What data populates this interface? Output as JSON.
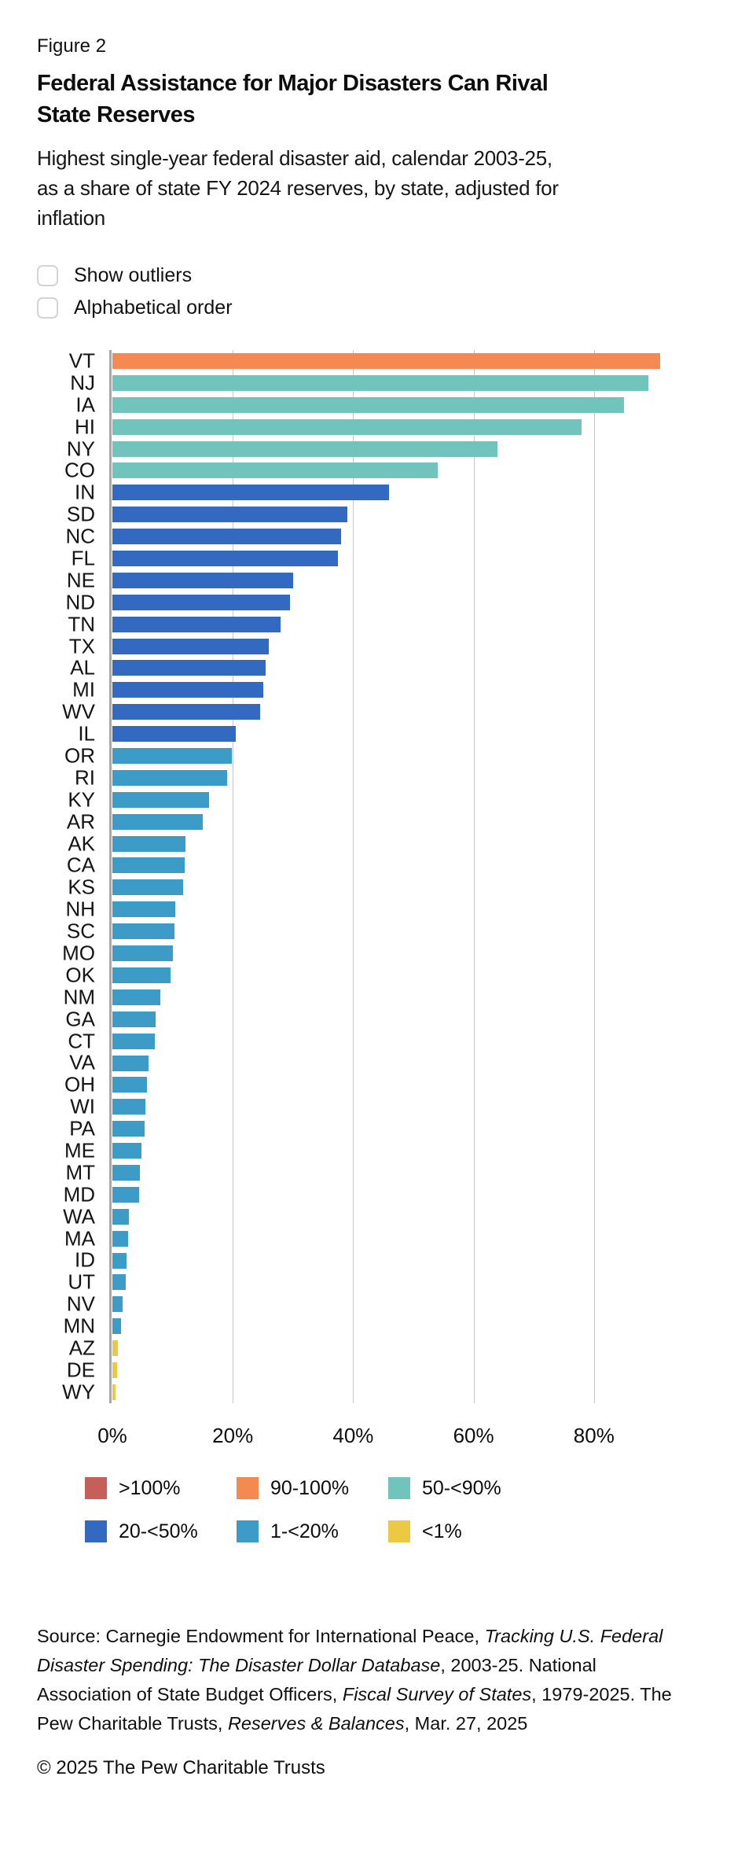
{
  "figure_label": "Figure 2",
  "title_lines": [
    "Federal Assistance for Major Disasters Can Rival",
    "State Reserves"
  ],
  "subtitle_lines": [
    "Highest single-year federal disaster aid, calendar 2003-25,",
    "as a share of state FY 2024 reserves, by state, adjusted for",
    "inflation"
  ],
  "controls": {
    "show_outliers_label": "Show outliers",
    "show_outliers_checked": false,
    "alphabetical_label": "Alphabetical order",
    "alphabetical_checked": false
  },
  "chart_data": {
    "type": "bar",
    "orientation": "horizontal",
    "title": "Highest single-year federal disaster aid, calendar 2003-25, as a share of state FY 2024 reserves, by state, adjusted for inflation",
    "xlabel": "",
    "ylabel": "",
    "x_ticks": [
      "0%",
      "20%",
      "40%",
      "60%",
      "80%"
    ],
    "x_tick_values": [
      0,
      20,
      40,
      60,
      80
    ],
    "xlim": [
      0,
      103
    ],
    "grid": true,
    "unit": "percent",
    "bucket_colors": {
      ">100%": "#C65F5A",
      "90-100%": "#F48952",
      "50-<90%": "#70C4BB",
      "20-<50%": "#3469C1",
      "1-<20%": "#3D9BC8",
      "<1%": "#ECC943"
    },
    "bars": [
      {
        "state": "VT",
        "value": 91,
        "bucket": "90-100%"
      },
      {
        "state": "NJ",
        "value": 89,
        "bucket": "50-<90%"
      },
      {
        "state": "IA",
        "value": 85,
        "bucket": "50-<90%"
      },
      {
        "state": "HI",
        "value": 78,
        "bucket": "50-<90%"
      },
      {
        "state": "NY",
        "value": 64,
        "bucket": "50-<90%"
      },
      {
        "state": "CO",
        "value": 54,
        "bucket": "50-<90%"
      },
      {
        "state": "IN",
        "value": 46,
        "bucket": "20-<50%"
      },
      {
        "state": "SD",
        "value": 39,
        "bucket": "20-<50%"
      },
      {
        "state": "NC",
        "value": 38,
        "bucket": "20-<50%"
      },
      {
        "state": "FL",
        "value": 37.5,
        "bucket": "20-<50%"
      },
      {
        "state": "NE",
        "value": 30,
        "bucket": "20-<50%"
      },
      {
        "state": "ND",
        "value": 29.5,
        "bucket": "20-<50%"
      },
      {
        "state": "TN",
        "value": 28,
        "bucket": "20-<50%"
      },
      {
        "state": "TX",
        "value": 26,
        "bucket": "20-<50%"
      },
      {
        "state": "AL",
        "value": 25.5,
        "bucket": "20-<50%"
      },
      {
        "state": "MI",
        "value": 25,
        "bucket": "20-<50%"
      },
      {
        "state": "WV",
        "value": 24.5,
        "bucket": "20-<50%"
      },
      {
        "state": "IL",
        "value": 20.5,
        "bucket": "20-<50%"
      },
      {
        "state": "OR",
        "value": 19.9,
        "bucket": "1-<20%"
      },
      {
        "state": "RI",
        "value": 19,
        "bucket": "1-<20%"
      },
      {
        "state": "KY",
        "value": 16,
        "bucket": "1-<20%"
      },
      {
        "state": "AR",
        "value": 15,
        "bucket": "1-<20%"
      },
      {
        "state": "AK",
        "value": 12.2,
        "bucket": "1-<20%"
      },
      {
        "state": "CA",
        "value": 12,
        "bucket": "1-<20%"
      },
      {
        "state": "KS",
        "value": 11.8,
        "bucket": "1-<20%"
      },
      {
        "state": "NH",
        "value": 10.5,
        "bucket": "1-<20%"
      },
      {
        "state": "SC",
        "value": 10.3,
        "bucket": "1-<20%"
      },
      {
        "state": "MO",
        "value": 10,
        "bucket": "1-<20%"
      },
      {
        "state": "OK",
        "value": 9.7,
        "bucket": "1-<20%"
      },
      {
        "state": "NM",
        "value": 8,
        "bucket": "1-<20%"
      },
      {
        "state": "GA",
        "value": 7.2,
        "bucket": "1-<20%"
      },
      {
        "state": "CT",
        "value": 7,
        "bucket": "1-<20%"
      },
      {
        "state": "VA",
        "value": 6,
        "bucket": "1-<20%"
      },
      {
        "state": "OH",
        "value": 5.8,
        "bucket": "1-<20%"
      },
      {
        "state": "WI",
        "value": 5.5,
        "bucket": "1-<20%"
      },
      {
        "state": "PA",
        "value": 5.4,
        "bucket": "1-<20%"
      },
      {
        "state": "ME",
        "value": 4.8,
        "bucket": "1-<20%"
      },
      {
        "state": "MT",
        "value": 4.6,
        "bucket": "1-<20%"
      },
      {
        "state": "MD",
        "value": 4.5,
        "bucket": "1-<20%"
      },
      {
        "state": "WA",
        "value": 2.7,
        "bucket": "1-<20%"
      },
      {
        "state": "MA",
        "value": 2.6,
        "bucket": "1-<20%"
      },
      {
        "state": "ID",
        "value": 2.4,
        "bucket": "1-<20%"
      },
      {
        "state": "UT",
        "value": 2.2,
        "bucket": "1-<20%"
      },
      {
        "state": "NV",
        "value": 1.7,
        "bucket": "1-<20%"
      },
      {
        "state": "MN",
        "value": 1.4,
        "bucket": "1-<20%"
      },
      {
        "state": "AZ",
        "value": 0.9,
        "bucket": "<1%"
      },
      {
        "state": "DE",
        "value": 0.8,
        "bucket": "<1%"
      },
      {
        "state": "WY",
        "value": 0.5,
        "bucket": "<1%"
      }
    ]
  },
  "legend": {
    "position": "bottom",
    "items": [
      {
        "label": ">100%",
        "color": "#C65F5A"
      },
      {
        "label": "90-100%",
        "color": "#F48952"
      },
      {
        "label": "50-<90%",
        "color": "#70C4BB"
      },
      {
        "label": "20-<50%",
        "color": "#3469C1"
      },
      {
        "label": "1-<20%",
        "color": "#3D9BC8"
      },
      {
        "label": "<1%",
        "color": "#ECC943"
      }
    ]
  },
  "source": {
    "segments": [
      {
        "text": "Source: Carnegie Endowment for International Peace, ",
        "italic": false
      },
      {
        "text": "Tracking U.S. Federal Disaster Spending: The Disaster Dollar Database",
        "italic": true
      },
      {
        "text": ", 2003-25. National Association of State Budget Officers, ",
        "italic": false
      },
      {
        "text": "Fiscal Survey of States",
        "italic": true
      },
      {
        "text": ", 1979-2025. The Pew Charitable Trusts, ",
        "italic": false
      },
      {
        "text": "Reserves & Balances",
        "italic": true
      },
      {
        "text": ", Mar. 27, 2025",
        "italic": false
      }
    ]
  },
  "copyright": "© 2025 The Pew Charitable Trusts"
}
